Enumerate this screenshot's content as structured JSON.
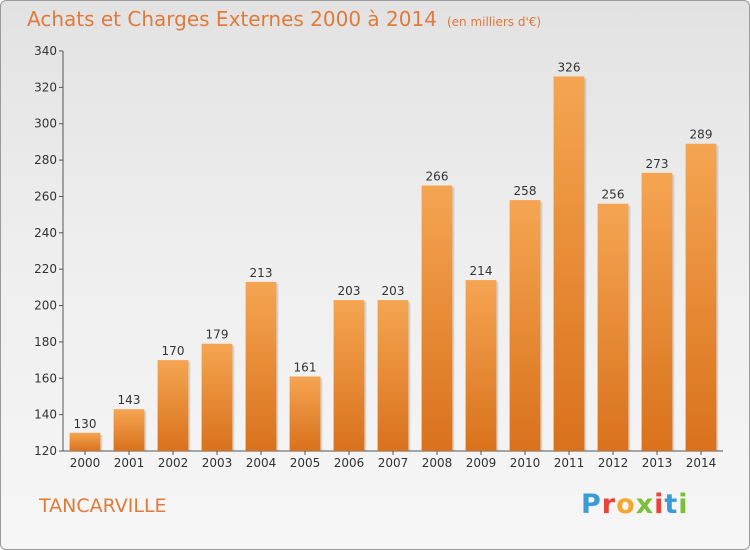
{
  "header": {
    "title": "Achats et Charges Externes 2000 à 2014",
    "subtitle": "(en milliers d'€)"
  },
  "footer": {
    "commune": "TANCARVILLE",
    "brand_letters": [
      "P",
      "r",
      "o",
      "x",
      "i",
      "t",
      "i"
    ],
    "brand_colors": [
      "#3a9bd5",
      "#e8443a",
      "#f2a830",
      "#7cbf3a",
      "#e8443a",
      "#3a9bd5",
      "#7cbf3a"
    ]
  },
  "chart_data": {
    "type": "bar",
    "categories": [
      "2000",
      "2001",
      "2002",
      "2003",
      "2004",
      "2005",
      "2006",
      "2007",
      "2008",
      "2009",
      "2010",
      "2011",
      "2012",
      "2013",
      "2014"
    ],
    "values": [
      130,
      143,
      170,
      179,
      213,
      161,
      203,
      203,
      266,
      214,
      258,
      326,
      256,
      273,
      289
    ],
    "yticks": [
      120,
      140,
      160,
      180,
      200,
      220,
      240,
      260,
      280,
      300,
      320,
      340
    ],
    "ylim": [
      120,
      340
    ],
    "bar_color_top": "#f5a552",
    "bar_color_bottom": "#d9711c",
    "grid": false
  }
}
